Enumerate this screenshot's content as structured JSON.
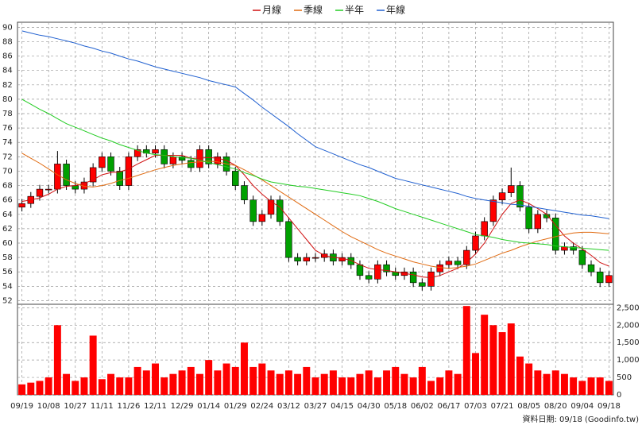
{
  "chart_data": {
    "type": "candlestick",
    "source_note": "資料日期: 09/18 (Goodinfo.tw)",
    "categories": [
      "09/19",
      null,
      null,
      "10/08",
      null,
      null,
      "10/27",
      null,
      null,
      "11/11",
      null,
      null,
      "11/26",
      null,
      null,
      "12/11",
      null,
      null,
      "12/29",
      null,
      null,
      "01/14",
      null,
      null,
      "01/29",
      null,
      null,
      "02/24",
      null,
      null,
      "03/12",
      null,
      null,
      "03/27",
      null,
      null,
      "04/15",
      null,
      null,
      "04/30",
      null,
      null,
      "05/18",
      null,
      null,
      "06/02",
      null,
      null,
      "06/17",
      null,
      null,
      "07/03",
      null,
      null,
      "07/21",
      null,
      null,
      "08/05",
      null,
      null,
      "08/20",
      null,
      null,
      "09/04",
      null,
      null,
      "09/18"
    ],
    "up_color": "#ff0000",
    "down_color": "#00a000",
    "grid": true,
    "ylim": [
      51.5,
      90.7
    ],
    "yticks": [
      52,
      54,
      56,
      58,
      60,
      62,
      64,
      66,
      68,
      70,
      72,
      74,
      76,
      78,
      80,
      82,
      84,
      86,
      88,
      90
    ],
    "open": [
      65,
      65.5,
      66.5,
      67.5,
      67.5,
      71,
      68,
      67.5,
      68.5,
      70.5,
      72,
      70,
      68,
      72,
      73,
      72.5,
      73,
      71,
      72,
      71.5,
      70.5,
      73,
      71,
      72,
      70,
      68,
      66,
      63,
      64,
      66,
      63,
      58,
      57.5,
      58,
      58,
      58.5,
      57.5,
      58,
      57,
      55.5,
      55,
      57,
      56,
      55.5,
      56,
      54.5,
      54,
      56,
      57,
      57.5,
      57,
      59,
      61,
      63,
      66,
      67,
      68,
      65,
      62,
      64,
      63.5,
      59,
      59.5,
      59,
      57,
      56,
      54.5
    ],
    "high": [
      66.1,
      67.1,
      68.1,
      68.1,
      72.8,
      71.6,
      68.6,
      69.1,
      71.1,
      72.6,
      72.6,
      70.6,
      72.6,
      73.6,
      73.6,
      73.6,
      73.6,
      72.6,
      72.6,
      72.1,
      73.6,
      73.6,
      72.6,
      72.6,
      70.6,
      68.6,
      66.6,
      64.6,
      66.6,
      66.6,
      63.6,
      58.6,
      58.6,
      58.6,
      59.1,
      59.1,
      58.6,
      58.6,
      57.6,
      56.1,
      57.6,
      57.6,
      56.6,
      56.6,
      56.6,
      55.1,
      56.6,
      57.6,
      58.1,
      58.1,
      59.6,
      61.6,
      63.6,
      66.6,
      67.6,
      70.5,
      68.6,
      65.6,
      64.6,
      64.6,
      64.1,
      60.1,
      60.1,
      59.6,
      57.6,
      56.6,
      56.1
    ],
    "low": [
      64.4,
      64.9,
      65.9,
      66.9,
      66.9,
      67.4,
      66.9,
      66.9,
      67.9,
      69.9,
      69.4,
      67.4,
      67.4,
      71.4,
      71.9,
      71.9,
      70.4,
      70.4,
      70.9,
      69.9,
      69.9,
      70.4,
      70.4,
      69.4,
      67.4,
      65.4,
      62.4,
      62.4,
      63.4,
      62.4,
      57.4,
      56.9,
      56.9,
      57.4,
      57.4,
      56.9,
      56.9,
      56.4,
      54.9,
      54.4,
      54.4,
      55.4,
      54.9,
      54.9,
      53.9,
      53.4,
      53.4,
      55.4,
      56.4,
      56.4,
      56.4,
      58.4,
      60.4,
      62.4,
      65.4,
      66.4,
      64.4,
      61.4,
      61.4,
      62.9,
      58.4,
      58.4,
      58.4,
      56.4,
      55.4,
      53.9,
      53.9
    ],
    "close": [
      65.5,
      66.5,
      67.5,
      67.5,
      71,
      68,
      67.5,
      68.5,
      70.5,
      72,
      70,
      68,
      72,
      73,
      72.5,
      73,
      71,
      72,
      71.5,
      70.5,
      73,
      71,
      72,
      70,
      68,
      66,
      63,
      64,
      66,
      63,
      58,
      57.5,
      58,
      58,
      58.5,
      57.5,
      58,
      57,
      55.5,
      55,
      57,
      56,
      55.5,
      56,
      54.5,
      54,
      56,
      57,
      57.5,
      57,
      59,
      61,
      63,
      66,
      67,
      68,
      65,
      62,
      64,
      63.5,
      59,
      59.5,
      59,
      57,
      56,
      54.5,
      55.5
    ],
    "series": [
      {
        "name": "月線",
        "color": "#d01010",
        "values": [
          65.8,
          66.0,
          66.3,
          66.8,
          67.5,
          67.9,
          68.0,
          68.3,
          68.8,
          69.5,
          69.8,
          69.9,
          70.3,
          71.0,
          71.6,
          72.2,
          72.2,
          72.2,
          72.2,
          71.8,
          71.8,
          71.9,
          71.8,
          71.5,
          70.8,
          69.5,
          68.0,
          66.8,
          65.8,
          65.0,
          63.5,
          62.0,
          60.5,
          59.0,
          58.3,
          58.0,
          57.9,
          57.6,
          57.0,
          56.5,
          56.3,
          56.2,
          56.0,
          55.8,
          55.6,
          55.3,
          55.2,
          55.5,
          56.0,
          56.5,
          57.3,
          58.5,
          60.0,
          62.0,
          64.0,
          65.5,
          66.0,
          65.5,
          64.8,
          64.0,
          62.5,
          61.0,
          60.0,
          59.2,
          58.3,
          57.3,
          56.8
        ]
      },
      {
        "name": "季線",
        "color": "#e06a10",
        "values": [
          72.5,
          71.8,
          71.1,
          70.3,
          69.5,
          68.8,
          68.3,
          67.9,
          67.8,
          68.0,
          68.3,
          68.7,
          69.0,
          69.4,
          69.8,
          70.2,
          70.5,
          70.8,
          71.0,
          71.2,
          71.3,
          71.4,
          71.3,
          71.0,
          70.8,
          70.2,
          69.5,
          68.8,
          68.0,
          67.2,
          66.4,
          65.6,
          64.8,
          64.0,
          63.2,
          62.4,
          61.6,
          60.9,
          60.3,
          59.7,
          59.1,
          58.6,
          58.2,
          57.8,
          57.4,
          57.1,
          56.8,
          56.6,
          56.5,
          56.6,
          56.8,
          57.1,
          57.6,
          58.1,
          58.6,
          59.0,
          59.5,
          59.9,
          60.3,
          60.6,
          60.9,
          61.2,
          61.4,
          61.5,
          61.5,
          61.4,
          61.3
        ]
      },
      {
        "name": "半年",
        "color": "#22cc22",
        "values": [
          80,
          79.3,
          78.6,
          78.0,
          77.3,
          76.6,
          76.1,
          75.6,
          75.1,
          74.6,
          74.2,
          73.7,
          73.3,
          72.9,
          72.5,
          72.3,
          72.2,
          72.0,
          71.9,
          71.8,
          71.5,
          71.2,
          70.9,
          70.6,
          70.3,
          69.8,
          69.4,
          68.9,
          68.5,
          68.3,
          68.1,
          67.9,
          67.8,
          67.6,
          67.4,
          67.2,
          67.0,
          66.8,
          66.6,
          66.2,
          65.8,
          65.3,
          64.8,
          64.4,
          64.0,
          63.6,
          63.2,
          62.8,
          62.4,
          62.0,
          61.6,
          61.2,
          61.0,
          60.8,
          60.5,
          60.3,
          60.1,
          60.0,
          59.9,
          59.8,
          59.6,
          59.5,
          59.4,
          59.3,
          59.2,
          59.1,
          59.0
        ]
      },
      {
        "name": "年線",
        "color": "#2060d0",
        "values": [
          89.5,
          89.2,
          88.9,
          88.7,
          88.4,
          88.1,
          87.8,
          87.4,
          87.1,
          86.7,
          86.4,
          86.0,
          85.6,
          85.3,
          84.9,
          84.5,
          84.2,
          83.9,
          83.6,
          83.3,
          83.0,
          82.6,
          82.3,
          82.0,
          81.7,
          80.8,
          79.9,
          78.9,
          78.0,
          77.1,
          76.2,
          75.2,
          74.3,
          73.4,
          72.9,
          72.4,
          71.9,
          71.4,
          70.9,
          70.5,
          70.0,
          69.5,
          69.0,
          68.7,
          68.4,
          68.1,
          67.8,
          67.5,
          67.2,
          66.9,
          66.5,
          66.2,
          66.0,
          65.8,
          65.6,
          65.4,
          65.3,
          65.1,
          64.9,
          64.7,
          64.5,
          64.3,
          64.1,
          63.9,
          63.8,
          63.6,
          63.4
        ]
      }
    ],
    "volume": {
      "color": "#ff0000",
      "ylim": [
        0,
        2600
      ],
      "yticks": [
        0,
        500,
        {
          "value": 1000,
          "label": "1,000"
        },
        {
          "value": 1500,
          "label": "1,500"
        },
        {
          "value": 2000,
          "label": "2,000"
        },
        {
          "value": 2500,
          "label": "2,500"
        }
      ],
      "values": [
        300,
        350,
        400,
        500,
        2000,
        600,
        400,
        500,
        1700,
        450,
        600,
        500,
        500,
        800,
        700,
        900,
        500,
        600,
        700,
        800,
        600,
        1000,
        700,
        900,
        800,
        1500,
        800,
        900,
        700,
        600,
        700,
        600,
        800,
        500,
        600,
        700,
        500,
        500,
        600,
        700,
        500,
        700,
        800,
        600,
        500,
        800,
        400,
        500,
        700,
        600,
        2550,
        1200,
        2300,
        2000,
        1800,
        2050,
        1100,
        900,
        700,
        600,
        700,
        600,
        500,
        400,
        500,
        500,
        400
      ]
    }
  }
}
